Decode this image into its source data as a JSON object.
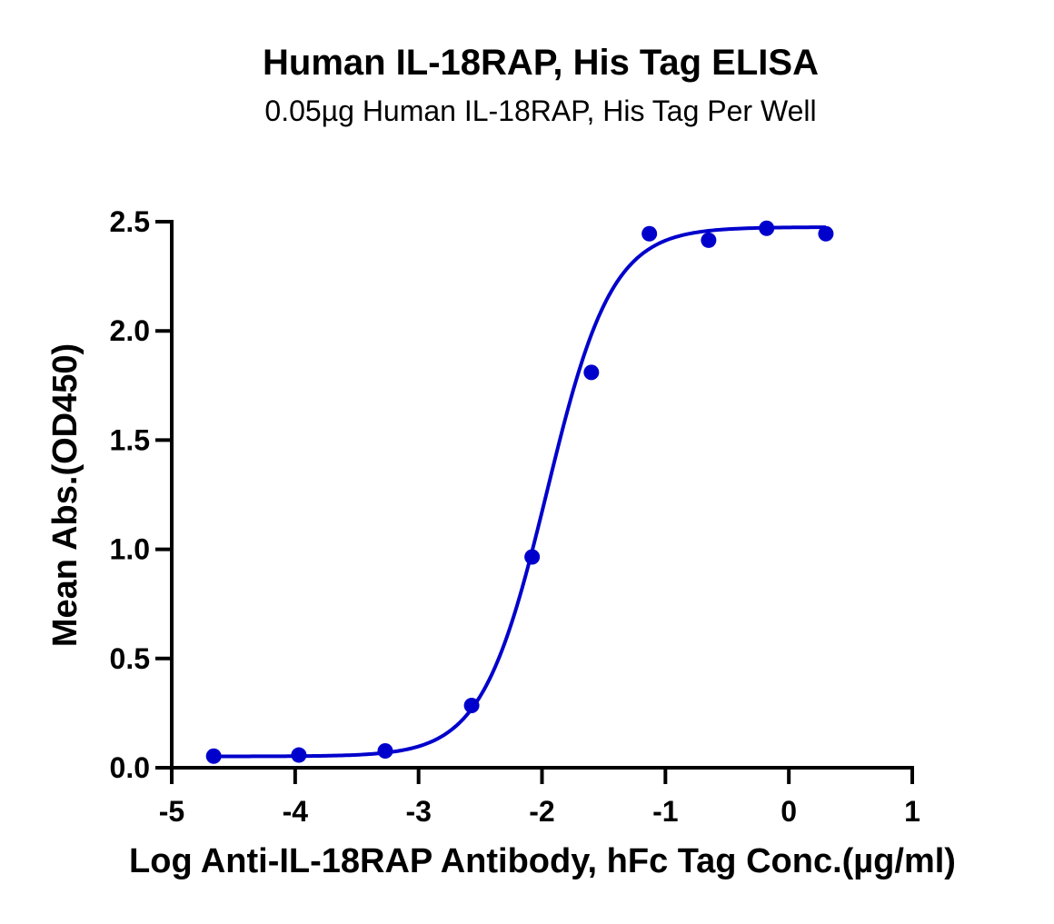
{
  "chart_data": {
    "type": "scatter",
    "title": "Human IL-18RAP, His Tag ELISA",
    "subtitle": "0.05µg Human IL-18RAP, His Tag Per Well",
    "xlabel": "Log Anti-IL-18RAP Antibody, hFc Tag Conc.(µg/ml)",
    "ylabel": "Mean Abs.(OD450)",
    "xlim": [
      -5,
      1
    ],
    "ylim": [
      0,
      2.5
    ],
    "x_ticks": [
      -5,
      -4,
      -3,
      -2,
      -1,
      0,
      1
    ],
    "x_tick_labels": [
      "-5",
      "-4",
      "-3",
      "-2",
      "-1",
      "0",
      "1"
    ],
    "y_ticks": [
      0,
      0.5,
      1.0,
      1.5,
      2.0,
      2.5
    ],
    "y_tick_labels": [
      "0.0",
      "0.5",
      "1.0",
      "1.5",
      "2.0",
      "2.5"
    ],
    "grid": false,
    "series": [
      {
        "color": "#0000CC",
        "points": {
          "x": [
            -4.66,
            -3.97,
            -3.27,
            -2.57,
            -2.08,
            -1.6,
            -1.13,
            -0.65,
            -0.18,
            0.3
          ],
          "y": [
            0.053,
            0.058,
            0.077,
            0.285,
            0.965,
            1.81,
            2.445,
            2.415,
            2.47,
            2.445
          ]
        },
        "fit": {
          "model": "4PL",
          "bottom": 0.052,
          "top": 2.475,
          "log_ec50": -1.96,
          "hill_slope": 1.65
        }
      }
    ]
  }
}
